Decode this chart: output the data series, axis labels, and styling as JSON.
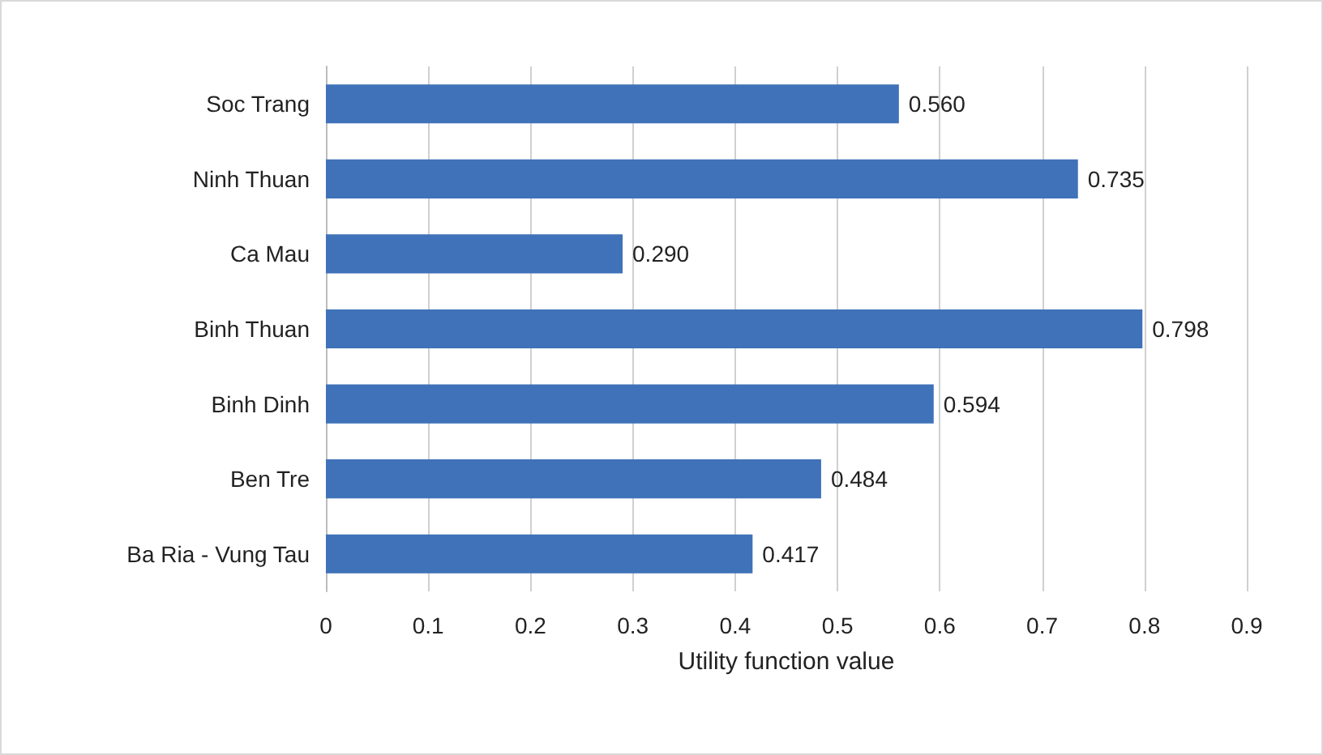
{
  "chart_data": {
    "type": "bar",
    "orientation": "horizontal",
    "xlabel": "Utility function value",
    "categories": [
      "Soc Trang",
      "Ninh Thuan",
      "Ca Mau",
      "Binh Thuan",
      "Binh Dinh",
      "Ben Tre",
      "Ba Ria - Vung Tau"
    ],
    "values": [
      0.56,
      0.735,
      0.29,
      0.798,
      0.594,
      0.484,
      0.417
    ],
    "value_labels": [
      "0.560",
      "0.735",
      "0.290",
      "0.798",
      "0.594",
      "0.484",
      "0.417"
    ],
    "color": "#3f72b8",
    "xlim": [
      0,
      0.9
    ],
    "xticks": [
      0,
      0.1,
      0.2,
      0.3,
      0.4,
      0.5,
      0.6,
      0.7,
      0.8,
      0.9
    ],
    "grid": "x"
  }
}
